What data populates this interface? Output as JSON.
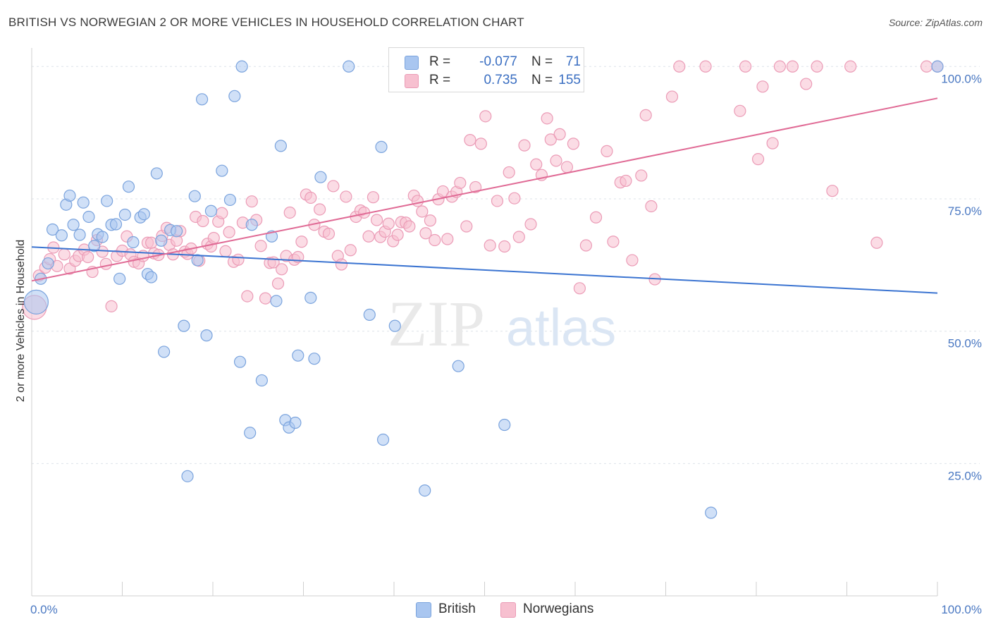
{
  "title": "BRITISH VS NORWEGIAN 2 OR MORE VEHICLES IN HOUSEHOLD CORRELATION CHART",
  "source": "Source: ZipAtlas.com",
  "watermark": {
    "zip": "ZIP",
    "atlas": "atlas"
  },
  "legend": {
    "british": {
      "r_label": "R =",
      "r_value": "-0.077",
      "n_label": "N =",
      "n_value": "71"
    },
    "norwegian": {
      "r_label": "R =",
      "r_value": "0.735",
      "n_label": "N =",
      "n_value": "155"
    }
  },
  "bottom_legend": {
    "british": "British",
    "norwegians": "Norwegians"
  },
  "colors": {
    "british_fill": "#a9c6f0",
    "british_stroke": "#7aa3dd",
    "british_line": "#3b74d1",
    "norwegian_fill": "#f7c0d0",
    "norwegian_stroke": "#eb9bb6",
    "norwegian_line": "#e06a95",
    "tick_text": "#4a78c2",
    "grid": "#dde3ea"
  },
  "chart_data": {
    "type": "scatter",
    "title": "BRITISH VS NORWEGIAN 2 OR MORE VEHICLES IN HOUSEHOLD CORRELATION CHART",
    "xlabel": "",
    "ylabel": "2 or more Vehicles in Household",
    "xlim": [
      0,
      100
    ],
    "ylim": [
      0,
      103.5
    ],
    "x_tick_labels": [
      "0.0%",
      "100.0%"
    ],
    "y_tick_labels": [
      "25.0%",
      "50.0%",
      "75.0%",
      "100.0%"
    ],
    "y_ticks": [
      25,
      50,
      75,
      100
    ],
    "grid": true,
    "legend_position": "top-center",
    "series": [
      {
        "name": "British",
        "trend": {
          "x": [
            0,
            100
          ],
          "y": [
            65.9,
            57.2
          ]
        },
        "points": [
          [
            0.5,
            55.5
          ],
          [
            1.0,
            59.9
          ],
          [
            1.8,
            62.8
          ],
          [
            2.3,
            69.2
          ],
          [
            3.3,
            68.1
          ],
          [
            3.8,
            73.9
          ],
          [
            4.2,
            75.6
          ],
          [
            4.6,
            70.1
          ],
          [
            5.3,
            68.2
          ],
          [
            5.7,
            74.3
          ],
          [
            6.3,
            71.6
          ],
          [
            6.9,
            66.1
          ],
          [
            7.3,
            68.3
          ],
          [
            7.8,
            67.8
          ],
          [
            8.3,
            74.6
          ],
          [
            8.8,
            70.1
          ],
          [
            9.3,
            70.2
          ],
          [
            9.7,
            59.9
          ],
          [
            10.3,
            72.0
          ],
          [
            10.7,
            77.3
          ],
          [
            11.2,
            66.8
          ],
          [
            12.0,
            71.5
          ],
          [
            12.4,
            72.1
          ],
          [
            12.8,
            60.8
          ],
          [
            13.2,
            60.2
          ],
          [
            13.8,
            79.8
          ],
          [
            14.3,
            67.1
          ],
          [
            14.6,
            46.1
          ],
          [
            15.3,
            69.1
          ],
          [
            16.0,
            68.9
          ],
          [
            16.8,
            51.0
          ],
          [
            17.2,
            22.6
          ],
          [
            18.0,
            75.5
          ],
          [
            18.3,
            63.4
          ],
          [
            18.8,
            93.8
          ],
          [
            19.3,
            49.2
          ],
          [
            19.8,
            72.7
          ],
          [
            21.0,
            80.3
          ],
          [
            21.9,
            74.8
          ],
          [
            22.4,
            94.4
          ],
          [
            23.0,
            44.2
          ],
          [
            23.2,
            100.0
          ],
          [
            24.1,
            30.8
          ],
          [
            24.3,
            70.1
          ],
          [
            25.4,
            40.7
          ],
          [
            26.5,
            67.9
          ],
          [
            27.0,
            55.7
          ],
          [
            27.5,
            85.0
          ],
          [
            28.0,
            33.2
          ],
          [
            28.4,
            31.8
          ],
          [
            29.1,
            32.7
          ],
          [
            29.4,
            45.4
          ],
          [
            30.8,
            56.3
          ],
          [
            31.2,
            44.8
          ],
          [
            31.9,
            79.1
          ],
          [
            35.0,
            100.0
          ],
          [
            37.3,
            53.1
          ],
          [
            38.6,
            84.8
          ],
          [
            38.8,
            29.5
          ],
          [
            40.1,
            51.0
          ],
          [
            43.4,
            19.9
          ],
          [
            47.1,
            43.4
          ],
          [
            52.2,
            32.3
          ],
          [
            75.0,
            15.7
          ],
          [
            100.0,
            100.0
          ]
        ]
      },
      {
        "name": "Norwegians",
        "trend": {
          "x": [
            0,
            100
          ],
          "y": [
            59.5,
            94.0
          ]
        },
        "points": [
          [
            0.3,
            54.5
          ],
          [
            0.8,
            60.5
          ],
          [
            1.5,
            62.0
          ],
          [
            2.0,
            63.6
          ],
          [
            2.4,
            65.8
          ],
          [
            2.8,
            62.3
          ],
          [
            3.6,
            64.5
          ],
          [
            4.2,
            61.8
          ],
          [
            4.8,
            63.3
          ],
          [
            5.2,
            64.2
          ],
          [
            5.8,
            65.4
          ],
          [
            6.2,
            64.0
          ],
          [
            6.7,
            61.2
          ],
          [
            7.2,
            67.2
          ],
          [
            7.8,
            65.0
          ],
          [
            8.2,
            62.7
          ],
          [
            8.8,
            54.7
          ],
          [
            9.4,
            64.2
          ],
          [
            10.0,
            65.2
          ],
          [
            10.5,
            67.9
          ],
          [
            10.9,
            64.5
          ],
          [
            11.3,
            63.1
          ],
          [
            11.8,
            62.8
          ],
          [
            12.3,
            64.2
          ],
          [
            12.8,
            66.7
          ],
          [
            13.2,
            66.7
          ],
          [
            13.5,
            64.7
          ],
          [
            14.0,
            64.4
          ],
          [
            14.4,
            68.0
          ],
          [
            14.9,
            69.5
          ],
          [
            15.2,
            66.3
          ],
          [
            15.6,
            64.5
          ],
          [
            16.0,
            67.1
          ],
          [
            16.4,
            68.9
          ],
          [
            16.9,
            65.0
          ],
          [
            17.2,
            64.6
          ],
          [
            17.6,
            65.6
          ],
          [
            18.1,
            71.6
          ],
          [
            18.5,
            63.3
          ],
          [
            18.9,
            70.8
          ],
          [
            19.4,
            66.5
          ],
          [
            19.8,
            66.0
          ],
          [
            20.1,
            67.6
          ],
          [
            20.6,
            70.7
          ],
          [
            21.0,
            72.3
          ],
          [
            21.4,
            65.1
          ],
          [
            21.8,
            68.7
          ],
          [
            22.3,
            63.1
          ],
          [
            22.8,
            63.5
          ],
          [
            23.3,
            70.5
          ],
          [
            23.8,
            56.6
          ],
          [
            24.3,
            74.5
          ],
          [
            24.8,
            71.0
          ],
          [
            25.3,
            66.1
          ],
          [
            25.8,
            56.2
          ],
          [
            26.3,
            62.9
          ],
          [
            26.7,
            63.0
          ],
          [
            27.2,
            59.0
          ],
          [
            27.6,
            61.7
          ],
          [
            28.1,
            64.2
          ],
          [
            28.5,
            72.4
          ],
          [
            29.0,
            63.5
          ],
          [
            29.4,
            64.0
          ],
          [
            29.8,
            66.9
          ],
          [
            30.3,
            75.8
          ],
          [
            30.8,
            75.2
          ],
          [
            31.2,
            70.1
          ],
          [
            31.8,
            73.0
          ],
          [
            32.3,
            68.8
          ],
          [
            32.8,
            68.4
          ],
          [
            33.3,
            77.4
          ],
          [
            33.8,
            64.2
          ],
          [
            34.2,
            62.6
          ],
          [
            34.7,
            75.4
          ],
          [
            35.2,
            65.3
          ],
          [
            35.8,
            71.6
          ],
          [
            36.3,
            72.8
          ],
          [
            36.7,
            72.4
          ],
          [
            37.2,
            67.9
          ],
          [
            37.7,
            75.3
          ],
          [
            38.1,
            71.0
          ],
          [
            38.5,
            67.8
          ],
          [
            39.0,
            68.8
          ],
          [
            39.4,
            70.3
          ],
          [
            39.9,
            67.0
          ],
          [
            40.4,
            68.2
          ],
          [
            40.8,
            70.6
          ],
          [
            41.3,
            70.5
          ],
          [
            41.7,
            69.8
          ],
          [
            42.2,
            75.6
          ],
          [
            42.6,
            74.6
          ],
          [
            43.1,
            72.6
          ],
          [
            43.5,
            68.5
          ],
          [
            44.0,
            70.9
          ],
          [
            44.5,
            67.2
          ],
          [
            44.9,
            74.9
          ],
          [
            45.4,
            76.4
          ],
          [
            45.9,
            67.4
          ],
          [
            46.4,
            75.4
          ],
          [
            46.9,
            76.3
          ],
          [
            47.3,
            78.0
          ],
          [
            48.0,
            69.8
          ],
          [
            48.4,
            86.1
          ],
          [
            49.0,
            77.2
          ],
          [
            49.6,
            85.4
          ],
          [
            50.1,
            90.6
          ],
          [
            50.6,
            66.2
          ],
          [
            51.4,
            74.6
          ],
          [
            52.2,
            66.0
          ],
          [
            52.7,
            80.0
          ],
          [
            53.3,
            75.1
          ],
          [
            53.8,
            67.8
          ],
          [
            54.4,
            85.1
          ],
          [
            55.1,
            70.2
          ],
          [
            55.7,
            81.5
          ],
          [
            56.3,
            79.5
          ],
          [
            56.9,
            90.2
          ],
          [
            57.3,
            86.2
          ],
          [
            57.9,
            82.2
          ],
          [
            58.3,
            87.2
          ],
          [
            59.1,
            81.0
          ],
          [
            59.8,
            85.4
          ],
          [
            60.5,
            58.1
          ],
          [
            61.2,
            66.2
          ],
          [
            62.3,
            71.5
          ],
          [
            63.5,
            84.0
          ],
          [
            64.2,
            66.9
          ],
          [
            65.0,
            78.1
          ],
          [
            65.6,
            78.4
          ],
          [
            66.3,
            63.4
          ],
          [
            67.3,
            79.4
          ],
          [
            67.8,
            90.8
          ],
          [
            68.4,
            73.6
          ],
          [
            68.8,
            59.8
          ],
          [
            70.7,
            94.3
          ],
          [
            71.5,
            100.0
          ],
          [
            74.4,
            100.0
          ],
          [
            78.2,
            91.6
          ],
          [
            78.8,
            100.0
          ],
          [
            80.2,
            82.5
          ],
          [
            80.7,
            96.2
          ],
          [
            81.8,
            85.5
          ],
          [
            82.6,
            100.0
          ],
          [
            84.0,
            100.0
          ],
          [
            85.5,
            96.7
          ],
          [
            86.7,
            100.0
          ],
          [
            88.4,
            76.5
          ],
          [
            90.4,
            100.0
          ],
          [
            93.3,
            66.7
          ],
          [
            100.0,
            100.0
          ],
          [
            98.8,
            100.0
          ]
        ]
      }
    ]
  }
}
